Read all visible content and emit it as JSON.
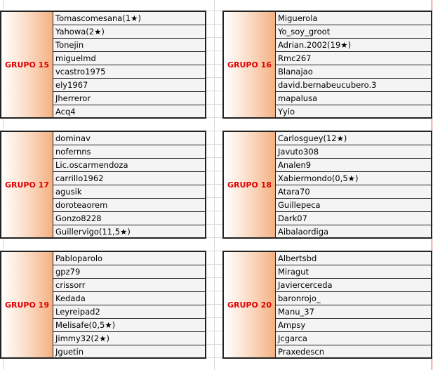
{
  "groups": [
    {
      "label": "GRUPO 15",
      "members": [
        "Tomascomesana(1★)",
        "Yahowa(2★)",
        "Tonejin",
        "miguelmd",
        "vcastro1975",
        "ely1967",
        "Jherreror",
        "Acq4"
      ]
    },
    {
      "label": "GRUPO 16",
      "members": [
        "Miguerola",
        "Yo_soy_groot",
        "Adrian.2002(19★)",
        "Rmc267",
        "Blanajao",
        "david.bernabeucubero.3",
        "mapalusa",
        "Yyio"
      ]
    },
    {
      "label": "GRUPO 17",
      "members": [
        "dominav",
        "nofernns",
        "Lic.oscarmendoza",
        "carrillo1962",
        "agusik",
        "doroteaorem",
        "Gonzo8228",
        "Guillervigo(11,5★)"
      ]
    },
    {
      "label": "GRUPO 18",
      "members": [
        "Carlosguey(12★)",
        "Javuto308",
        "Analen9",
        "Xabiermondo(0,5★)",
        "Atara70",
        "Guillepeca",
        "Dark07",
        "Aibalaordiga"
      ]
    },
    {
      "label": "GRUPO 19",
      "members": [
        "Pabloparolo",
        "gpz79",
        "crissorr",
        "Kedada",
        "Leyreipad2",
        "Melisafe(0,5★)",
        "Jimmy32(2★)",
        "Jguetin"
      ]
    },
    {
      "label": "GRUPO 20",
      "members": [
        "Albertsbd",
        "Miragut",
        "Javiercerceda",
        "baronrojo_",
        "Manu_37",
        "Ampsy",
        "Jcgarca",
        "Praxedescn"
      ]
    }
  ]
}
